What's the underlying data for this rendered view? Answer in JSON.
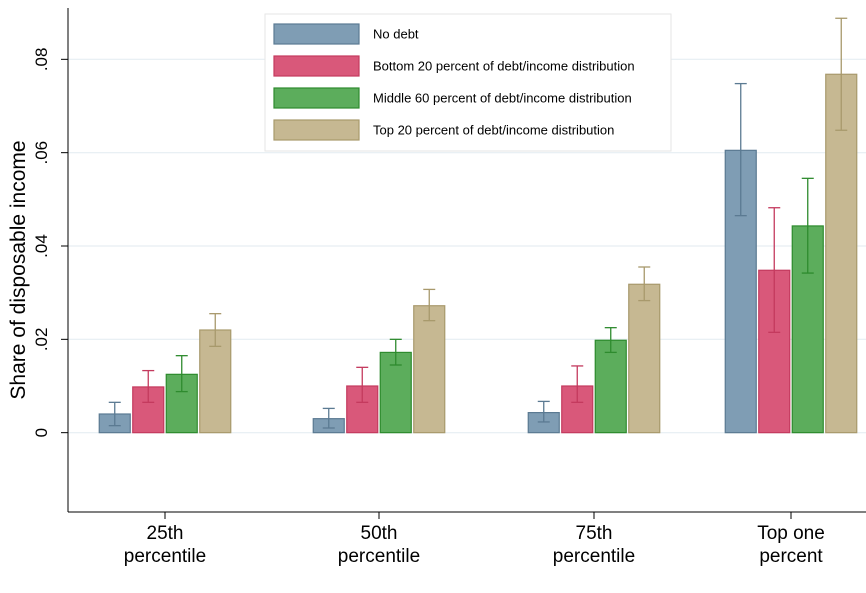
{
  "chart_data": {
    "type": "bar",
    "ylabel": "Share of disposable income",
    "xlabel": "",
    "ylim": [
      -0.017,
      0.091
    ],
    "yticks": [
      0,
      0.02,
      0.04,
      0.06,
      0.08
    ],
    "ytick_labels": [
      "0",
      ".02",
      ".04",
      ".06",
      ".08"
    ],
    "grid": true,
    "legend_position": "top-center",
    "categories": [
      [
        "25th",
        "percentile"
      ],
      [
        "50th",
        "percentile"
      ],
      [
        "75th",
        "percentile"
      ],
      [
        "Top one",
        "percent"
      ]
    ],
    "series": [
      {
        "name": "No debt",
        "color": "#7f9db4",
        "stroke": "#5b7a92",
        "values": [
          0.004,
          0.003,
          0.0043,
          0.0605
        ],
        "ci_low": [
          0.0015,
          0.001,
          0.0023,
          0.0465
        ],
        "ci_high": [
          0.0065,
          0.0052,
          0.0067,
          0.0748
        ]
      },
      {
        "name": "Bottom 20 percent of debt/income distribution",
        "color": "#d9587a",
        "stroke": "#c43a5e",
        "values": [
          0.0098,
          0.01,
          0.01,
          0.0348
        ],
        "ci_low": [
          0.0065,
          0.0065,
          0.0065,
          0.0215
        ],
        "ci_high": [
          0.0133,
          0.014,
          0.0143,
          0.0482
        ]
      },
      {
        "name": "Middle 60 percent of debt/income distribution",
        "color": "#5cad5c",
        "stroke": "#2e8b2e",
        "values": [
          0.0125,
          0.0172,
          0.0198,
          0.0443
        ],
        "ci_low": [
          0.0088,
          0.0145,
          0.0172,
          0.0342
        ],
        "ci_high": [
          0.0165,
          0.02,
          0.0225,
          0.0545
        ]
      },
      {
        "name": "Top 20 percent of debt/income distribution",
        "color": "#c6b892",
        "stroke": "#a8996c",
        "values": [
          0.022,
          0.0272,
          0.0318,
          0.0768
        ],
        "ci_low": [
          0.0185,
          0.024,
          0.0283,
          0.0648
        ],
        "ci_high": [
          0.0255,
          0.0307,
          0.0355,
          0.0888
        ]
      }
    ]
  }
}
